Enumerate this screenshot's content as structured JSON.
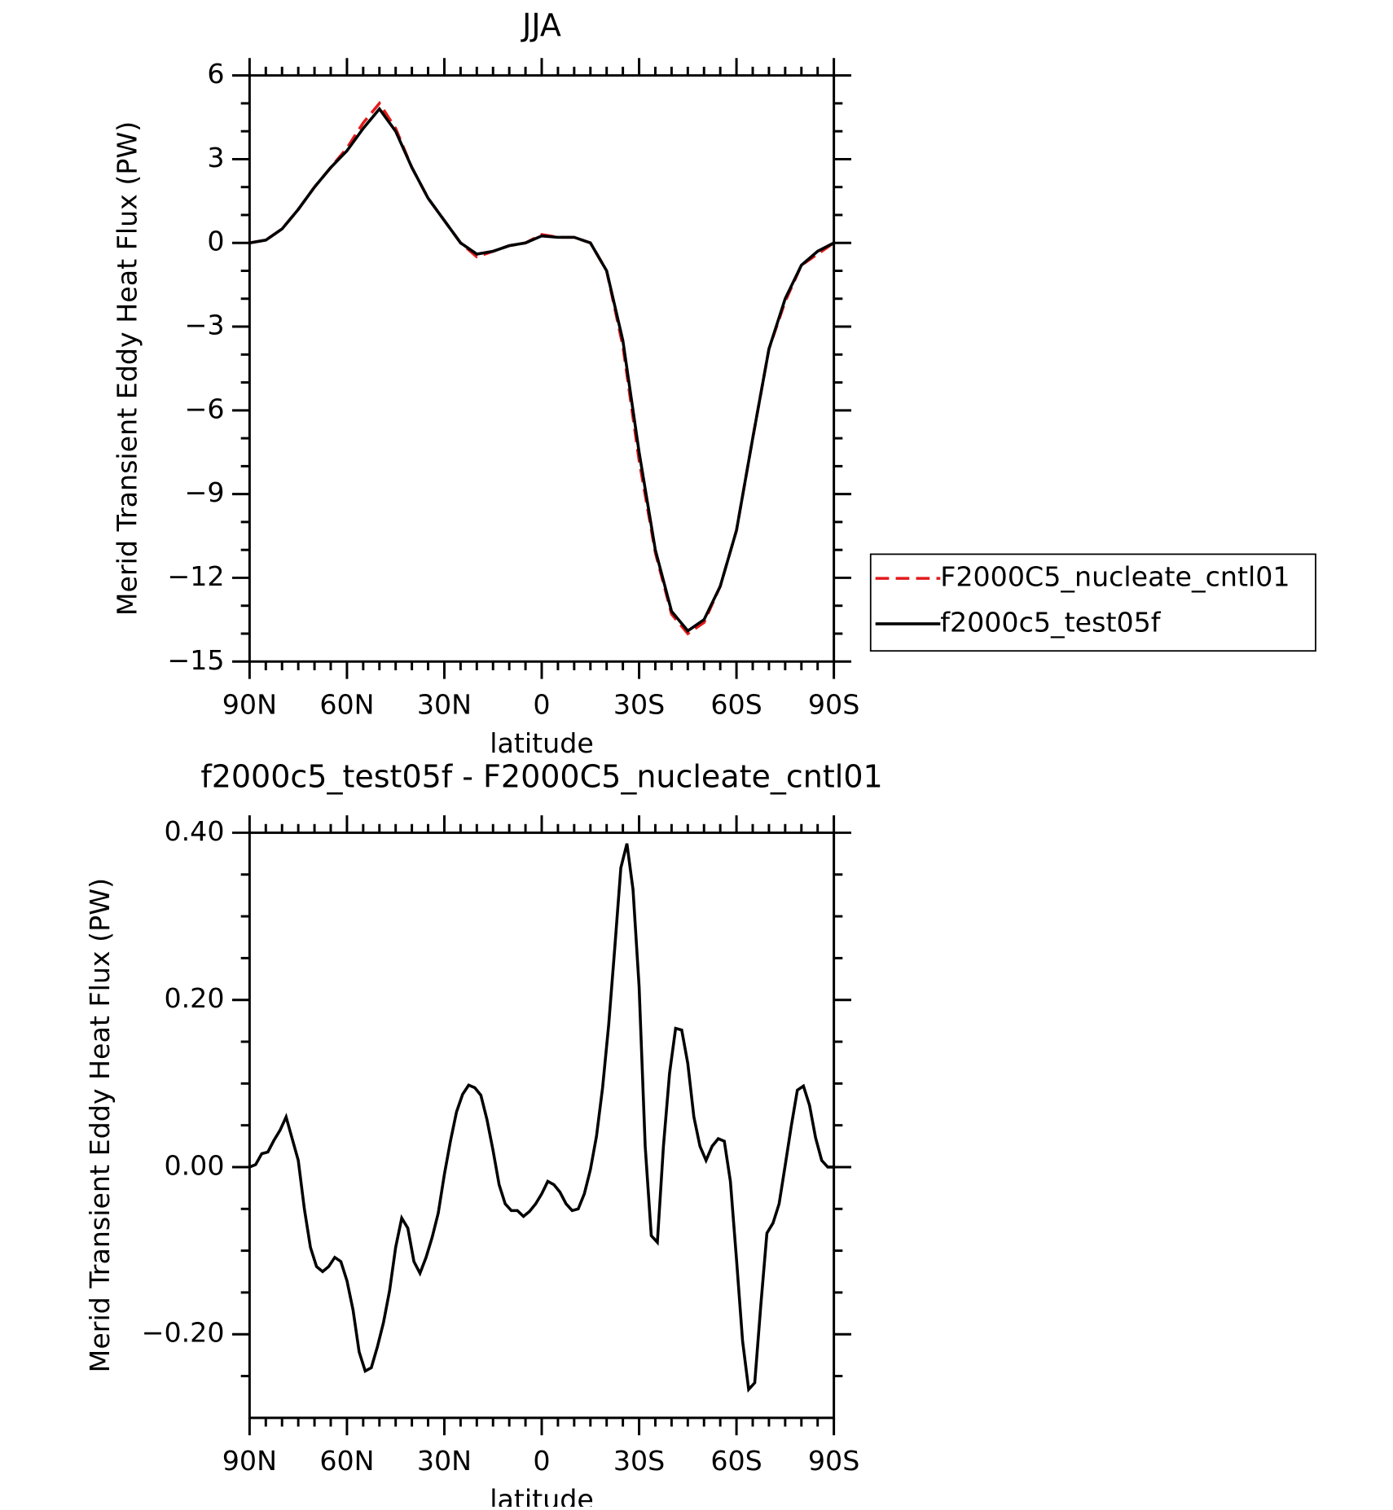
{
  "chart_data": [
    {
      "type": "line",
      "title": "JJA",
      "x_label": "latitude",
      "y_label": "Merid Transient Eddy Heat Flux (PW)",
      "x": [
        90,
        85,
        80,
        75,
        70,
        65,
        60,
        55,
        50,
        45,
        40,
        35,
        30,
        25,
        20,
        15,
        10,
        5,
        0,
        -5,
        -10,
        -15,
        -20,
        -25,
        -30,
        -35,
        -40,
        -45,
        -50,
        -55,
        -60,
        -65,
        -70,
        -75,
        -80,
        -85,
        -90
      ],
      "series": [
        {
          "name": "F2000C5_nucleate_cntl01",
          "color": "#e41a1c",
          "style": "dashed",
          "values": [
            0,
            0.1,
            0.5,
            1.2,
            2.0,
            2.7,
            3.4,
            4.3,
            5.0,
            4.1,
            2.7,
            1.6,
            0.8,
            0.0,
            -0.5,
            -0.3,
            -0.1,
            0.0,
            0.3,
            0.2,
            0.2,
            0.0,
            -1.0,
            -3.7,
            -7.8,
            -11.1,
            -13.3,
            -14.0,
            -13.6,
            -12.3,
            -10.3,
            -7.0,
            -3.8,
            -2.1,
            -0.8,
            -0.4,
            0
          ]
        },
        {
          "name": "f2000c5_test05f",
          "color": "#000000",
          "style": "solid",
          "values": [
            0,
            0.1,
            0.5,
            1.2,
            2.0,
            2.7,
            3.3,
            4.1,
            4.8,
            4.0,
            2.7,
            1.6,
            0.8,
            0.0,
            -0.4,
            -0.3,
            -0.1,
            0.0,
            0.25,
            0.2,
            0.2,
            0.0,
            -1.0,
            -3.5,
            -7.5,
            -11.0,
            -13.2,
            -13.9,
            -13.5,
            -12.3,
            -10.3,
            -7.0,
            -3.8,
            -2.0,
            -0.8,
            -0.3,
            0
          ]
        }
      ],
      "xlim": [
        90,
        -90
      ],
      "xticks": [
        {
          "value": 90,
          "label": "90N"
        },
        {
          "value": 60,
          "label": "60N"
        },
        {
          "value": 30,
          "label": "30N"
        },
        0,
        {
          "value": -30,
          "label": "30S"
        },
        {
          "value": -60,
          "label": "60S"
        },
        {
          "value": -90,
          "label": "90S"
        }
      ],
      "xminorticks": [
        85,
        80,
        75,
        70,
        65,
        55,
        50,
        45,
        40,
        35,
        25,
        20,
        15,
        10,
        5,
        -5,
        -10,
        -15,
        -20,
        -25,
        -35,
        -40,
        -45,
        -50,
        -55,
        -65,
        -70,
        -75,
        -80,
        -85
      ],
      "ylim": [
        -15,
        6
      ],
      "yticks": [
        6,
        3,
        0,
        {
          "value": -3,
          "label": "−3"
        },
        {
          "value": -6,
          "label": "−6"
        },
        {
          "value": -9,
          "label": "−9"
        },
        {
          "value": -12,
          "label": "−12"
        },
        {
          "value": -15,
          "label": "−15"
        }
      ],
      "yminorticks": [
        5,
        4,
        2,
        1,
        -1,
        -2,
        -4,
        -5,
        -7,
        -8,
        -10,
        -11,
        -13,
        -14
      ],
      "legend": "right"
    },
    {
      "type": "line",
      "title": "f2000c5_test05f - F2000C5_nucleate_cntl01",
      "x_label": "latitude",
      "y_label": "Merid Transient Eddy Heat Flux (PW)",
      "x": [
        90,
        88.125,
        86.25,
        84.375,
        82.5,
        80.625,
        78.75,
        76.875,
        75,
        73.125,
        71.25,
        69.375,
        67.5,
        65.625,
        63.75,
        61.875,
        60,
        58.125,
        56.25,
        54.375,
        52.5,
        50.625,
        48.75,
        46.875,
        45,
        43.125,
        41.25,
        39.375,
        37.5,
        35.625,
        33.75,
        31.875,
        30,
        28.125,
        26.25,
        24.375,
        22.5,
        20.625,
        18.75,
        16.875,
        15,
        13.125,
        11.25,
        9.375,
        7.5,
        5.625,
        3.75,
        1.875,
        0,
        -1.875,
        -3.75,
        -5.625,
        -7.5,
        -9.375,
        -11.25,
        -13.125,
        -15,
        -16.875,
        -18.75,
        -20.625,
        -22.5,
        -24.375,
        -26.25,
        -28.125,
        -30,
        -31.875,
        -33.75,
        -35.625,
        -37.5,
        -39.375,
        -41.25,
        -43.125,
        -45,
        -46.875,
        -48.75,
        -50.625,
        -52.5,
        -54.375,
        -56.25,
        -58.125,
        -60,
        -61.875,
        -63.75,
        -65.625,
        -67.5,
        -69.375,
        -71.25,
        -73.125,
        -75,
        -76.875,
        -78.75,
        -80.625,
        -82.5,
        -84.375,
        -86.25,
        -88.125,
        -90
      ],
      "color": "#000000",
      "values": [
        0,
        0.003,
        0.016,
        0.018,
        0.032,
        0.044,
        0.06,
        0.034,
        0.008,
        -0.05,
        -0.096,
        -0.119,
        -0.125,
        -0.119,
        -0.108,
        -0.113,
        -0.136,
        -0.171,
        -0.221,
        -0.244,
        -0.24,
        -0.215,
        -0.186,
        -0.148,
        -0.096,
        -0.061,
        -0.073,
        -0.113,
        -0.127,
        -0.108,
        -0.084,
        -0.055,
        -0.009,
        0.031,
        0.066,
        0.087,
        0.098,
        0.095,
        0.086,
        0.057,
        0.02,
        -0.021,
        -0.044,
        -0.052,
        -0.052,
        -0.059,
        -0.053,
        -0.044,
        -0.032,
        -0.017,
        -0.021,
        -0.03,
        -0.044,
        -0.052,
        -0.05,
        -0.032,
        -0.003,
        0.037,
        0.095,
        0.17,
        0.262,
        0.358,
        0.387,
        0.332,
        0.216,
        0.025,
        -0.082,
        -0.09,
        0.025,
        0.112,
        0.166,
        0.164,
        0.124,
        0.06,
        0.025,
        0.008,
        0.025,
        0.034,
        0.031,
        -0.017,
        -0.11,
        -0.208,
        -0.266,
        -0.258,
        -0.165,
        -0.079,
        -0.067,
        -0.044,
        0.002,
        0.049,
        0.092,
        0.097,
        0.074,
        0.035,
        0.008,
        0,
        0
      ],
      "xlim": [
        90,
        -90
      ],
      "xticks": [
        {
          "value": 90,
          "label": "90N"
        },
        {
          "value": 60,
          "label": "60N"
        },
        {
          "value": 30,
          "label": "30N"
        },
        0,
        {
          "value": -30,
          "label": "30S"
        },
        {
          "value": -60,
          "label": "60S"
        },
        {
          "value": -90,
          "label": "90S"
        }
      ],
      "xminorticks": [
        85,
        80,
        75,
        70,
        65,
        55,
        50,
        45,
        40,
        35,
        25,
        20,
        15,
        10,
        5,
        -5,
        -10,
        -15,
        -20,
        -25,
        -35,
        -40,
        -45,
        -50,
        -55,
        -65,
        -70,
        -75,
        -80,
        -85
      ],
      "ylim": [
        -0.3,
        0.4
      ],
      "yticks": [
        {
          "value": 0.4,
          "label": "0.40"
        },
        {
          "value": 0.2,
          "label": "0.20"
        },
        {
          "value": 0,
          "label": "0.00"
        },
        {
          "value": -0.2,
          "label": "−0.20"
        }
      ],
      "yminorticks": [
        0.35,
        0.3,
        0.25,
        0.15,
        0.1,
        0.05,
        -0.05,
        -0.1,
        -0.15,
        -0.25
      ]
    }
  ]
}
